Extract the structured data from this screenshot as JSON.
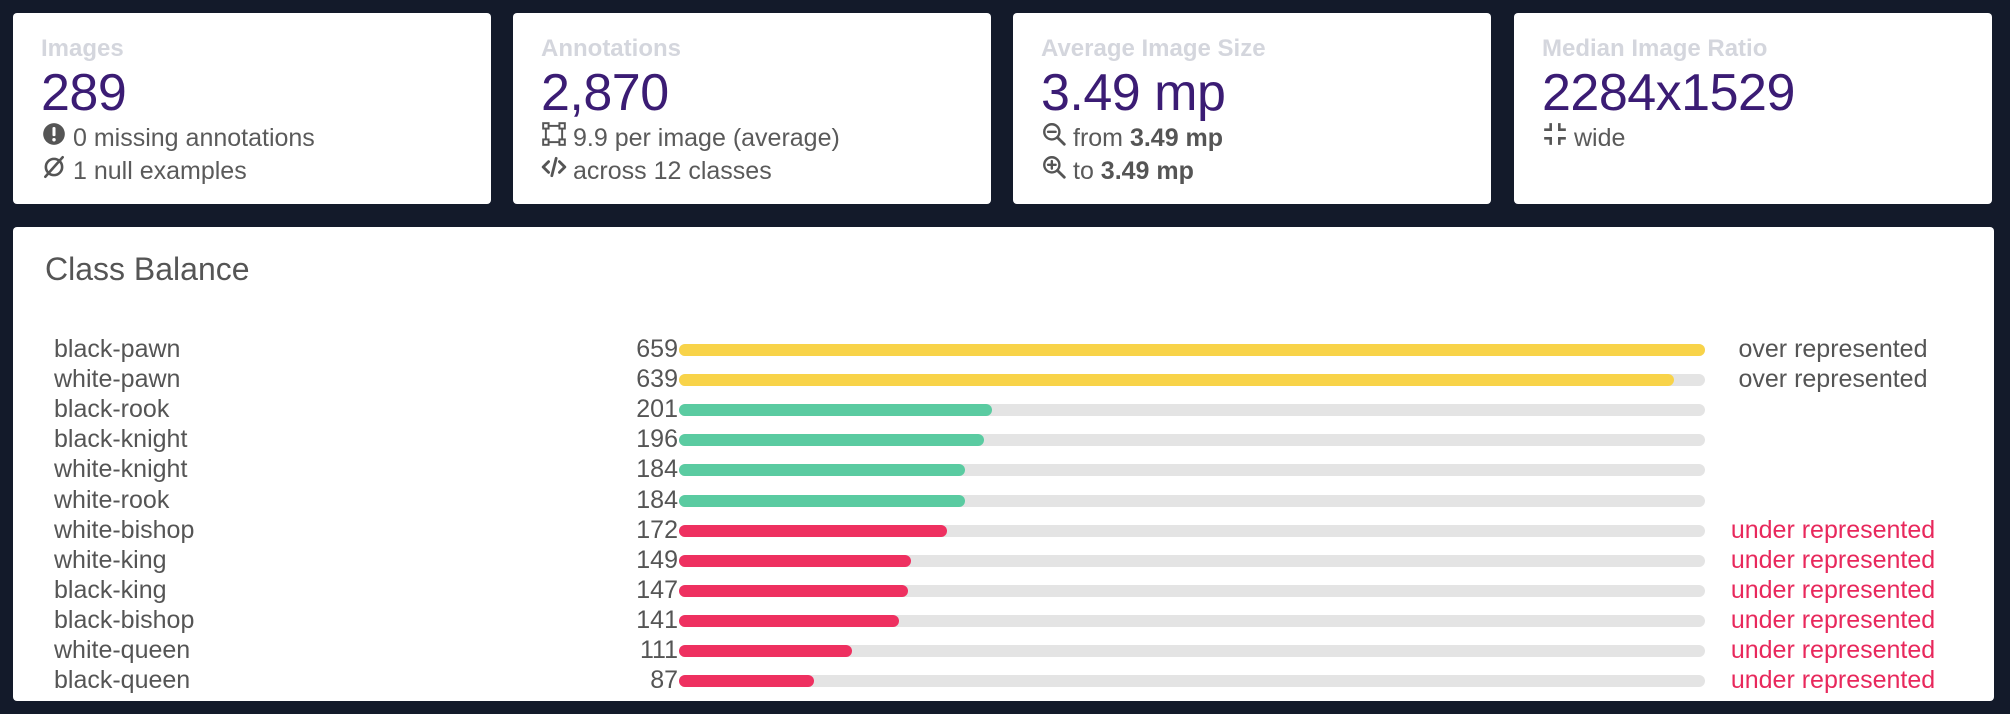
{
  "stats": [
    {
      "label": "Images",
      "value": "289",
      "lines": [
        {
          "icon": "exclamation-circle-icon",
          "parts": [
            {
              "text": "0 missing annotations",
              "bold": false
            }
          ]
        },
        {
          "icon": "null-set-icon",
          "parts": [
            {
              "text": "1 null examples",
              "bold": false
            }
          ]
        }
      ]
    },
    {
      "label": "Annotations",
      "value": "2,870",
      "lines": [
        {
          "icon": "bounding-box-icon",
          "parts": [
            {
              "text": "9.9 per image (average)",
              "bold": false
            }
          ]
        },
        {
          "icon": "code-icon",
          "parts": [
            {
              "text": "across 12 classes",
              "bold": false
            }
          ]
        }
      ]
    },
    {
      "label": "Average Image Size",
      "value": "3.49 mp",
      "lines": [
        {
          "icon": "zoom-out-icon",
          "parts": [
            {
              "text": "from ",
              "bold": false
            },
            {
              "text": "3.49 mp",
              "bold": true
            }
          ]
        },
        {
          "icon": "zoom-in-icon",
          "parts": [
            {
              "text": "to ",
              "bold": false
            },
            {
              "text": "3.49 mp",
              "bold": true
            }
          ]
        }
      ]
    },
    {
      "label": "Median Image Ratio",
      "value": "2284x1529",
      "lines": [
        {
          "icon": "compress-icon",
          "parts": [
            {
              "text": "wide",
              "bold": false
            }
          ]
        }
      ]
    }
  ],
  "class_balance": {
    "title": "Class Balance",
    "max": 659,
    "colors": {
      "over": "#f8d349",
      "normal": "#5acba1",
      "under": "#ee3060",
      "track": "#e4e4e4",
      "status_over": "#555555",
      "status_under": "#e8285c"
    },
    "classes": [
      {
        "name": "black-pawn",
        "count": 659,
        "status": "over",
        "status_label": "over represented"
      },
      {
        "name": "white-pawn",
        "count": 639,
        "status": "over",
        "status_label": "over represented"
      },
      {
        "name": "black-rook",
        "count": 201,
        "status": "normal",
        "status_label": ""
      },
      {
        "name": "black-knight",
        "count": 196,
        "status": "normal",
        "status_label": ""
      },
      {
        "name": "white-knight",
        "count": 184,
        "status": "normal",
        "status_label": ""
      },
      {
        "name": "white-rook",
        "count": 184,
        "status": "normal",
        "status_label": ""
      },
      {
        "name": "white-bishop",
        "count": 172,
        "status": "under",
        "status_label": "under represented"
      },
      {
        "name": "white-king",
        "count": 149,
        "status": "under",
        "status_label": "under represented"
      },
      {
        "name": "black-king",
        "count": 147,
        "status": "under",
        "status_label": "under represented"
      },
      {
        "name": "black-bishop",
        "count": 141,
        "status": "under",
        "status_label": "under represented"
      },
      {
        "name": "white-queen",
        "count": 111,
        "status": "under",
        "status_label": "under represented"
      },
      {
        "name": "black-queen",
        "count": 87,
        "status": "under",
        "status_label": "under represented"
      }
    ]
  }
}
